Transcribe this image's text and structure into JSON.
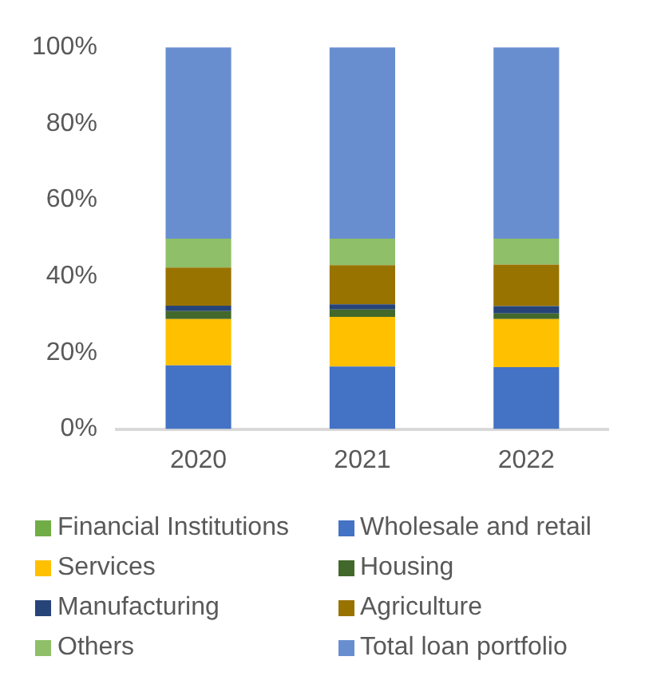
{
  "chart_data": {
    "type": "bar",
    "stacked": true,
    "categories": [
      "2020",
      "2021",
      "2022"
    ],
    "series": [
      {
        "name": "Financial Institutions",
        "color": "#70ad47",
        "values": [
          0,
          0,
          0
        ]
      },
      {
        "name": "Wholesale and retail",
        "color": "#4472c4",
        "values": [
          16.7,
          16.4,
          16.2
        ]
      },
      {
        "name": "Services",
        "color": "#ffc000",
        "values": [
          12.1,
          13.0,
          12.6
        ]
      },
      {
        "name": "Housing",
        "color": "#43682b",
        "values": [
          2.1,
          1.9,
          1.5
        ]
      },
      {
        "name": "Manufacturing",
        "color": "#264478",
        "values": [
          1.4,
          1.4,
          1.9
        ]
      },
      {
        "name": "Agriculture",
        "color": "#997300",
        "values": [
          10.0,
          10.2,
          10.9
        ]
      },
      {
        "name": "Others",
        "color": "#8fbf68",
        "values": [
          7.6,
          7.0,
          6.8
        ]
      },
      {
        "name": "Total loan portfolio",
        "color": "#698ed0",
        "values": [
          50.1,
          50.1,
          50.1
        ]
      }
    ],
    "ylim": [
      0,
      100
    ],
    "yticks": [
      {
        "value": 0,
        "label": "0%"
      },
      {
        "value": 20,
        "label": "20%"
      },
      {
        "value": 40,
        "label": "40%"
      },
      {
        "value": 60,
        "label": "60%"
      },
      {
        "value": 80,
        "label": "80%"
      },
      {
        "value": 100,
        "label": "100%"
      }
    ],
    "grid": false,
    "legend": "bottom"
  }
}
